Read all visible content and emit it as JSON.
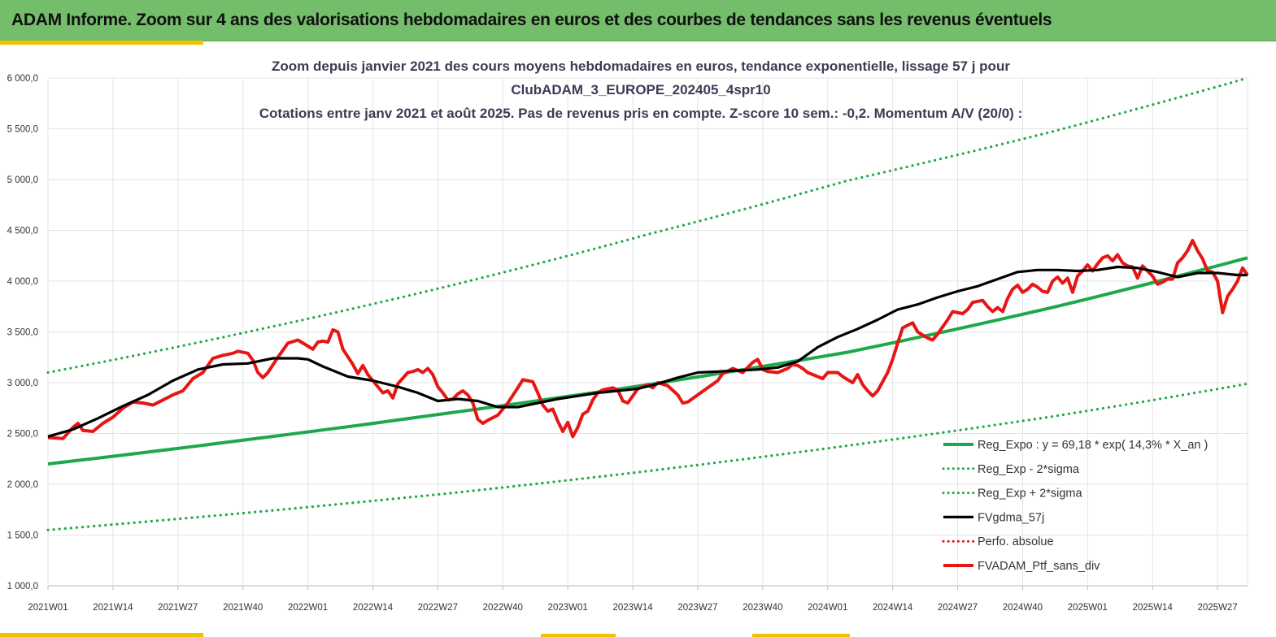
{
  "header": {
    "title": "ADAM Informe. Zoom sur 4 ans des valorisations hebdomadaires en euros et des courbes de tendances sans les revenus éventuels"
  },
  "chart_data": {
    "type": "line",
    "title_lines": [
      "Zoom depuis janvier 2021 des cours moyens hebdomadaires  en euros, tendance exponentielle, lissage 57 j pour",
      "ClubADAM_3_EUROPE_202405_4spr10",
      "Cotations  entre janv 2021 et août 2025. Pas de revenus pris en compte. Z-score 10 sem.: -0,2. Momentum A/V (20/0) :"
    ],
    "xlabel": "",
    "ylabel": "",
    "ylim": [
      1000,
      6000
    ],
    "ytick_values": [
      1000,
      1500,
      2000,
      2500,
      3000,
      3500,
      4000,
      4500,
      5000,
      5500,
      6000
    ],
    "ytick_labels": [
      "1 000,0",
      "1 500,0",
      "2 000,0",
      "2 500,0",
      "3 000,0",
      "3 500,0",
      "4 000,0",
      "4 500,0",
      "5 000,0",
      "5 500,0",
      "6 000,0"
    ],
    "x_categories": [
      "2021W01",
      "2021W14",
      "2021W27",
      "2021W40",
      "2022W01",
      "2022W14",
      "2022W27",
      "2022W40",
      "2023W01",
      "2023W14",
      "2023W27",
      "2023W40",
      "2024W01",
      "2024W14",
      "2024W27",
      "2024W40",
      "2025W01",
      "2025W14",
      "2025W27"
    ],
    "x_range_weeks": [
      0,
      240
    ],
    "grid": true,
    "legend_position": "bottom-right",
    "series": [
      {
        "name": "Reg_Expo : y = 69,18 * exp( 14,3% *  X_an )",
        "style": "solid",
        "color": "#1fa84a",
        "points": [
          [
            0,
            2200
          ],
          [
            40,
            2440
          ],
          [
            80,
            2700
          ],
          [
            120,
            2980
          ],
          [
            160,
            3300
          ],
          [
            200,
            3730
          ],
          [
            240,
            4230
          ]
        ]
      },
      {
        "name": "Reg_Exp - 2*sigma",
        "style": "dotted",
        "color": "#1fa84a",
        "points": [
          [
            0,
            1550
          ],
          [
            40,
            1720
          ],
          [
            80,
            1910
          ],
          [
            120,
            2130
          ],
          [
            160,
            2380
          ],
          [
            200,
            2660
          ],
          [
            240,
            2990
          ]
        ]
      },
      {
        "name": "Reg_Exp + 2*sigma",
        "style": "dotted",
        "color": "#1fa84a",
        "points": [
          [
            0,
            3100
          ],
          [
            40,
            3500
          ],
          [
            80,
            3950
          ],
          [
            120,
            4460
          ],
          [
            160,
            4990
          ],
          [
            200,
            5460
          ],
          [
            240,
            6000
          ]
        ]
      },
      {
        "name": "FVgdma_57j",
        "style": "solid",
        "color": "#000000",
        "points": [
          [
            0,
            2470
          ],
          [
            5,
            2540
          ],
          [
            10,
            2650
          ],
          [
            15,
            2770
          ],
          [
            20,
            2880
          ],
          [
            25,
            3020
          ],
          [
            30,
            3130
          ],
          [
            35,
            3180
          ],
          [
            40,
            3190
          ],
          [
            45,
            3240
          ],
          [
            50,
            3240
          ],
          [
            52,
            3230
          ],
          [
            55,
            3160
          ],
          [
            60,
            3060
          ],
          [
            65,
            3020
          ],
          [
            70,
            2960
          ],
          [
            74,
            2900
          ],
          [
            78,
            2820
          ],
          [
            82,
            2840
          ],
          [
            86,
            2820
          ],
          [
            90,
            2760
          ],
          [
            94,
            2760
          ],
          [
            98,
            2800
          ],
          [
            102,
            2840
          ],
          [
            106,
            2870
          ],
          [
            110,
            2900
          ],
          [
            114,
            2920
          ],
          [
            118,
            2940
          ],
          [
            122,
            2990
          ],
          [
            126,
            3050
          ],
          [
            130,
            3100
          ],
          [
            134,
            3110
          ],
          [
            138,
            3120
          ],
          [
            142,
            3130
          ],
          [
            146,
            3150
          ],
          [
            150,
            3210
          ],
          [
            154,
            3350
          ],
          [
            158,
            3450
          ],
          [
            162,
            3530
          ],
          [
            166,
            3620
          ],
          [
            170,
            3720
          ],
          [
            174,
            3770
          ],
          [
            178,
            3840
          ],
          [
            182,
            3900
          ],
          [
            186,
            3950
          ],
          [
            190,
            4020
          ],
          [
            194,
            4090
          ],
          [
            198,
            4110
          ],
          [
            202,
            4110
          ],
          [
            206,
            4100
          ],
          [
            210,
            4110
          ],
          [
            214,
            4140
          ],
          [
            218,
            4130
          ],
          [
            222,
            4090
          ],
          [
            226,
            4040
          ],
          [
            230,
            4080
          ],
          [
            234,
            4080
          ],
          [
            238,
            4060
          ],
          [
            240,
            4060
          ]
        ]
      },
      {
        "name": "Perfo. absolue",
        "style": "dotted",
        "color": "#e0141b",
        "points": []
      },
      {
        "name": "FVADAM_Ptf_sans_div",
        "style": "solid",
        "color": "#e81515",
        "points": [
          [
            0,
            2460
          ],
          [
            3,
            2450
          ],
          [
            5,
            2560
          ],
          [
            6,
            2600
          ],
          [
            7,
            2530
          ],
          [
            9,
            2520
          ],
          [
            11,
            2600
          ],
          [
            13,
            2660
          ],
          [
            15,
            2750
          ],
          [
            17,
            2810
          ],
          [
            19,
            2800
          ],
          [
            21,
            2780
          ],
          [
            23,
            2830
          ],
          [
            25,
            2880
          ],
          [
            27,
            2920
          ],
          [
            29,
            3040
          ],
          [
            31,
            3100
          ],
          [
            33,
            3240
          ],
          [
            35,
            3270
          ],
          [
            37,
            3290
          ],
          [
            38,
            3310
          ],
          [
            40,
            3290
          ],
          [
            41,
            3220
          ],
          [
            42,
            3100
          ],
          [
            43,
            3050
          ],
          [
            44,
            3100
          ],
          [
            46,
            3250
          ],
          [
            48,
            3390
          ],
          [
            50,
            3420
          ],
          [
            52,
            3360
          ],
          [
            53,
            3330
          ],
          [
            54,
            3400
          ],
          [
            55,
            3410
          ],
          [
            56,
            3400
          ],
          [
            57,
            3520
          ],
          [
            58,
            3500
          ],
          [
            59,
            3330
          ],
          [
            61,
            3180
          ],
          [
            62,
            3090
          ],
          [
            63,
            3170
          ],
          [
            64,
            3080
          ],
          [
            66,
            2960
          ],
          [
            67,
            2900
          ],
          [
            68,
            2920
          ],
          [
            69,
            2850
          ],
          [
            70,
            2990
          ],
          [
            72,
            3100
          ],
          [
            73,
            3110
          ],
          [
            74,
            3130
          ],
          [
            75,
            3100
          ],
          [
            76,
            3140
          ],
          [
            77,
            3080
          ],
          [
            78,
            2960
          ],
          [
            79,
            2900
          ],
          [
            80,
            2830
          ],
          [
            81,
            2840
          ],
          [
            82,
            2890
          ],
          [
            83,
            2920
          ],
          [
            84,
            2880
          ],
          [
            85,
            2800
          ],
          [
            86,
            2640
          ],
          [
            87,
            2600
          ],
          [
            88,
            2630
          ],
          [
            90,
            2680
          ],
          [
            92,
            2800
          ],
          [
            94,
            2950
          ],
          [
            95,
            3030
          ],
          [
            97,
            3010
          ],
          [
            98,
            2900
          ],
          [
            99,
            2780
          ],
          [
            100,
            2720
          ],
          [
            101,
            2740
          ],
          [
            102,
            2620
          ],
          [
            103,
            2520
          ],
          [
            104,
            2610
          ],
          [
            105,
            2470
          ],
          [
            106,
            2560
          ],
          [
            107,
            2690
          ],
          [
            108,
            2720
          ],
          [
            109,
            2830
          ],
          [
            110,
            2900
          ],
          [
            111,
            2930
          ],
          [
            113,
            2950
          ],
          [
            114,
            2930
          ],
          [
            115,
            2820
          ],
          [
            116,
            2800
          ],
          [
            117,
            2870
          ],
          [
            118,
            2940
          ],
          [
            120,
            2980
          ],
          [
            121,
            2950
          ],
          [
            122,
            3000
          ],
          [
            124,
            2970
          ],
          [
            126,
            2880
          ],
          [
            127,
            2800
          ],
          [
            128,
            2810
          ],
          [
            130,
            2880
          ],
          [
            132,
            2950
          ],
          [
            134,
            3020
          ],
          [
            135,
            3090
          ],
          [
            137,
            3140
          ],
          [
            138,
            3120
          ],
          [
            139,
            3100
          ],
          [
            140,
            3150
          ],
          [
            141,
            3200
          ],
          [
            142,
            3230
          ],
          [
            143,
            3130
          ],
          [
            144,
            3110
          ],
          [
            146,
            3100
          ],
          [
            148,
            3140
          ],
          [
            149,
            3180
          ],
          [
            150,
            3170
          ],
          [
            151,
            3140
          ],
          [
            152,
            3100
          ],
          [
            154,
            3060
          ],
          [
            155,
            3040
          ],
          [
            156,
            3100
          ],
          [
            158,
            3100
          ],
          [
            159,
            3060
          ],
          [
            160,
            3030
          ],
          [
            161,
            3000
          ],
          [
            162,
            3080
          ],
          [
            163,
            2980
          ],
          [
            164,
            2920
          ],
          [
            165,
            2870
          ],
          [
            166,
            2920
          ],
          [
            168,
            3100
          ],
          [
            169,
            3230
          ],
          [
            170,
            3390
          ],
          [
            171,
            3540
          ],
          [
            173,
            3590
          ],
          [
            174,
            3500
          ],
          [
            175,
            3470
          ],
          [
            176,
            3440
          ],
          [
            177,
            3420
          ],
          [
            178,
            3480
          ],
          [
            179,
            3550
          ],
          [
            180,
            3620
          ],
          [
            181,
            3700
          ],
          [
            183,
            3680
          ],
          [
            184,
            3720
          ],
          [
            185,
            3790
          ],
          [
            187,
            3810
          ],
          [
            188,
            3750
          ],
          [
            189,
            3700
          ],
          [
            190,
            3740
          ],
          [
            191,
            3700
          ],
          [
            192,
            3830
          ],
          [
            193,
            3920
          ],
          [
            194,
            3960
          ],
          [
            195,
            3890
          ],
          [
            196,
            3920
          ],
          [
            197,
            3970
          ],
          [
            198,
            3940
          ],
          [
            199,
            3900
          ],
          [
            200,
            3890
          ],
          [
            201,
            4000
          ],
          [
            202,
            4040
          ],
          [
            203,
            3980
          ],
          [
            204,
            4030
          ],
          [
            205,
            3890
          ],
          [
            206,
            4050
          ],
          [
            207,
            4100
          ],
          [
            208,
            4160
          ],
          [
            209,
            4100
          ],
          [
            210,
            4170
          ],
          [
            211,
            4230
          ],
          [
            212,
            4250
          ],
          [
            213,
            4200
          ],
          [
            214,
            4260
          ],
          [
            215,
            4180
          ],
          [
            216,
            4150
          ],
          [
            217,
            4140
          ],
          [
            218,
            4030
          ],
          [
            219,
            4150
          ],
          [
            220,
            4100
          ],
          [
            221,
            4050
          ],
          [
            222,
            3970
          ],
          [
            223,
            3990
          ],
          [
            224,
            4020
          ],
          [
            225,
            4020
          ],
          [
            226,
            4180
          ],
          [
            227,
            4230
          ],
          [
            228,
            4300
          ],
          [
            229,
            4400
          ],
          [
            230,
            4300
          ],
          [
            231,
            4220
          ],
          [
            232,
            4100
          ],
          [
            233,
            4090
          ],
          [
            234,
            4000
          ],
          [
            235,
            3690
          ],
          [
            236,
            3850
          ],
          [
            237,
            3920
          ],
          [
            238,
            4000
          ],
          [
            239,
            4130
          ],
          [
            240,
            4060
          ]
        ]
      }
    ]
  }
}
